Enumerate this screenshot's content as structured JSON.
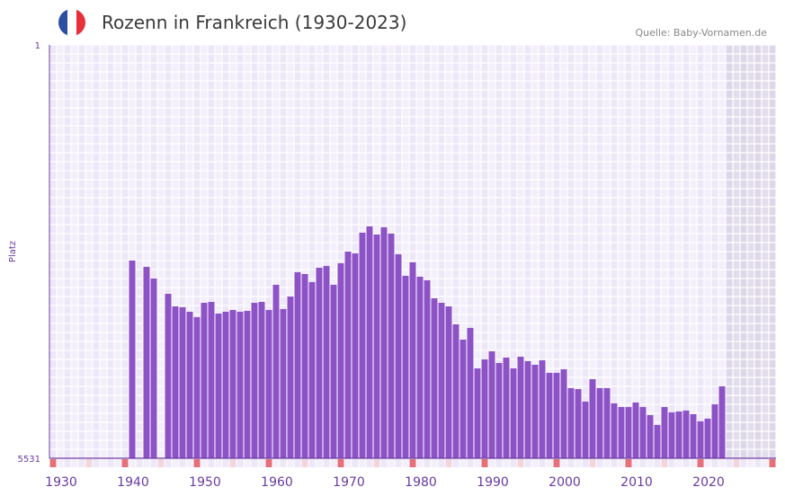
{
  "header": {
    "title": "Rozenn in Frankreich (1930-2023)",
    "source": "Quelle: Baby-Vornamen.de",
    "flag_icon": "france-flag-icon",
    "flag_colors": [
      "#2b4ea2",
      "#ffffff",
      "#e8303a"
    ]
  },
  "chart_data": {
    "type": "bar",
    "title": "Rozenn in Frankreich (1930-2023)",
    "xlabel": "",
    "ylabel": "Platz",
    "y_inverted": true,
    "ylim": [
      1,
      5531
    ],
    "y_tick_labels": [
      "1",
      "5531"
    ],
    "xlim": [
      1928,
      2028
    ],
    "x_tick_labels": [
      "1930",
      "1940",
      "1950",
      "1960",
      "1970",
      "1980",
      "1990",
      "2000",
      "2010",
      "2020"
    ],
    "x_tick_values": [
      1930,
      1940,
      1950,
      1960,
      1970,
      1980,
      1990,
      2000,
      2010,
      2020
    ],
    "future_shaded_from": 2022,
    "grid": true,
    "bar_color": "#8c52c6",
    "marker_colors": {
      "decade": "#e57079",
      "half_decade": "#f3d5de"
    },
    "series": [
      {
        "name": "Rozenn",
        "start_year": 1939,
        "values": [
          2886,
          null,
          2970,
          3126,
          null,
          3331,
          3499,
          3511,
          3571,
          3643,
          3451,
          3439,
          3595,
          3571,
          3547,
          3571,
          3559,
          3451,
          3439,
          3547,
          3210,
          3535,
          3367,
          3042,
          3066,
          3174,
          2982,
          2958,
          3210,
          2922,
          2766,
          2790,
          2513,
          2429,
          2537,
          2441,
          2525,
          2802,
          3090,
          2910,
          3102,
          3150,
          3391,
          3451,
          3499,
          3739,
          3944,
          3787,
          4328,
          4208,
          4100,
          4256,
          4184,
          4328,
          4172,
          4232,
          4280,
          4220,
          4388,
          4388,
          4340,
          4593,
          4605,
          4773,
          4473,
          4593,
          4593,
          4797,
          4845,
          4845,
          4785,
          4845,
          4953,
          5085,
          4845,
          4917,
          4905,
          4893,
          4941,
          5037,
          5001,
          4809,
          4569
        ]
      }
    ]
  }
}
